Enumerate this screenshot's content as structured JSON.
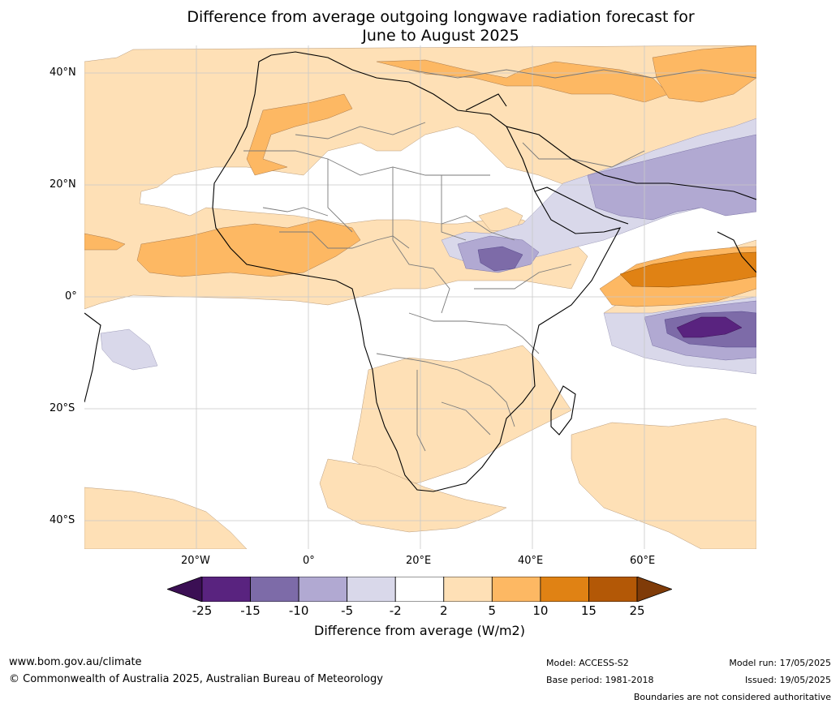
{
  "title_line1": "Difference from average outgoing longwave radiation forecast for",
  "title_line2": "June to August 2025",
  "lat_labels": [
    "40°N",
    "20°N",
    "0°",
    "20°S",
    "40°S"
  ],
  "lon_labels": [
    "20°W",
    "0°",
    "20°E",
    "40°E",
    "60°E"
  ],
  "colorbar": {
    "ticks": [
      "-25",
      "-15",
      "-10",
      "-5",
      "-2",
      "2",
      "5",
      "10",
      "15",
      "25"
    ],
    "colors": [
      "#3b0f54",
      "#59237f",
      "#7d6ba8",
      "#b1a9d2",
      "#d9d8ea",
      "#ffffff",
      "#fee0b6",
      "#fdb863",
      "#e08214",
      "#b35806",
      "#7f3b08"
    ],
    "label": "Difference from average (W/m2)"
  },
  "footer": {
    "url": "www.bom.gov.au/climate",
    "copyright": "© Commonwealth of Australia 2025, Australian Bureau of Meteorology",
    "model": "Model: ACCESS-S2",
    "base_period": "Base period: 1981-2018",
    "model_run": "Model run: 17/05/2025",
    "issued": "Issued: 19/05/2025",
    "disclaimer": "Boundaries are not considered authoritative"
  }
}
